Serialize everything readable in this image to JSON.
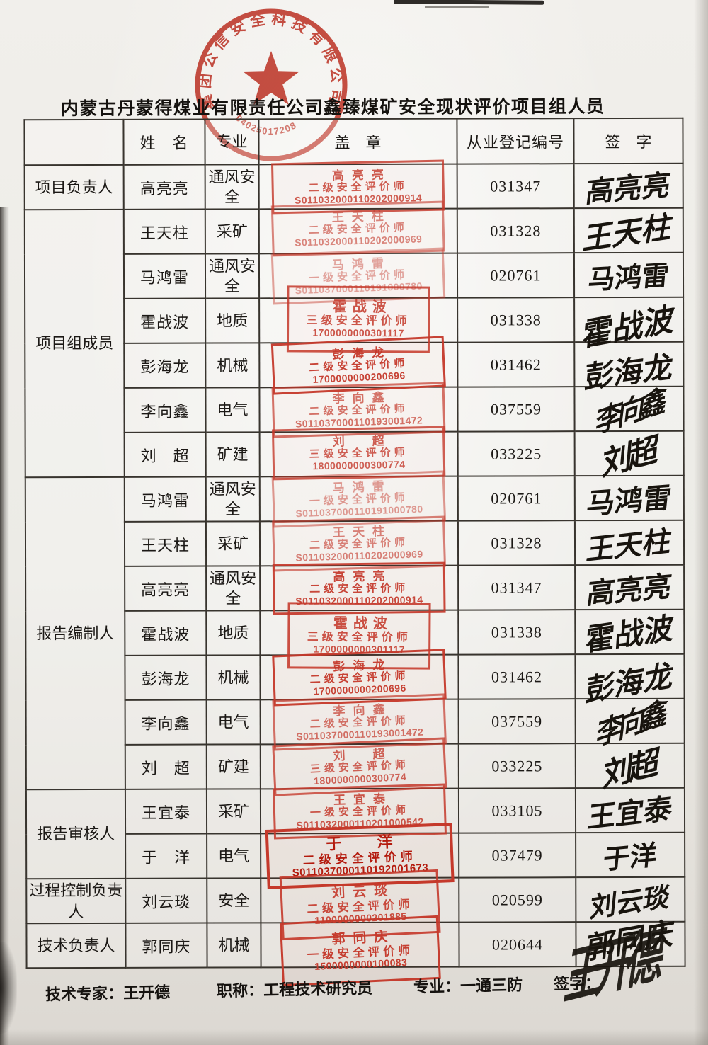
{
  "page": {
    "title": "内蒙古丹蒙得煤业有限责任公司鑫臻煤矿安全现状评价项目组人员"
  },
  "seal": {
    "ring_text": "集团公信安全科技有限公司",
    "code": "04025017208",
    "color": "#c5392b"
  },
  "table": {
    "headers": {
      "role": "",
      "name": "姓　名",
      "specialty": "专业",
      "stamp": "盖　章",
      "reg_no": "从业登记编号",
      "signature": "签　字"
    }
  },
  "rows": [
    {
      "role": "项目负责人",
      "role_span": 1,
      "name": "高亮亮",
      "specialty": "通风安全",
      "stamp": {
        "name": "高亮亮",
        "grade": "二级安全评价师",
        "no": "S011032000110202000914"
      },
      "reg_no": "031347",
      "signature": "高亮亮"
    },
    {
      "role": "项目组成员",
      "role_span": 6,
      "name": "王天柱",
      "specialty": "采矿",
      "stamp": {
        "name": "王天柱",
        "grade": "二级安全评价师",
        "no": "S011032000110202000969"
      },
      "reg_no": "031328",
      "signature": "王天柱"
    },
    {
      "name": "马鸿雷",
      "specialty": "通风安全",
      "stamp": {
        "name": "马鸿雷",
        "grade": "一级安全评价师",
        "no": "S011037000110191000780"
      },
      "reg_no": "020761",
      "signature": "马鸿雷"
    },
    {
      "name": "霍战波",
      "specialty": "地质",
      "stamp": {
        "name": "霍战波",
        "grade": "三级安全评价师",
        "no": "1700000000301117"
      },
      "reg_no": "031338",
      "signature": "霍战波"
    },
    {
      "name": "彭海龙",
      "specialty": "机械",
      "stamp": {
        "name": "彭海龙",
        "grade": "二级安全评价师",
        "no": "1700000000200696"
      },
      "reg_no": "031462",
      "signature": "彭海龙"
    },
    {
      "name": "李向鑫",
      "specialty": "电气",
      "stamp": {
        "name": "李向鑫",
        "grade": "二级安全评价师",
        "no": "S011037000110193001472"
      },
      "reg_no": "037559",
      "signature": "李向鑫"
    },
    {
      "name": "刘　超",
      "specialty": "矿建",
      "stamp": {
        "name": "刘　超",
        "grade": "三级安全评价师",
        "no": "1800000000300774"
      },
      "reg_no": "033225",
      "signature": "刘超"
    },
    {
      "role": "报告编制人",
      "role_span": 7,
      "name": "马鸿雷",
      "specialty": "通风安全",
      "stamp": {
        "name": "马鸿雷",
        "grade": "一级安全评价师",
        "no": "S011037000110191000780"
      },
      "reg_no": "020761",
      "signature": "马鸿雷"
    },
    {
      "name": "王天柱",
      "specialty": "采矿",
      "stamp": {
        "name": "王天柱",
        "grade": "二级安全评价师",
        "no": "S011032000110202000969"
      },
      "reg_no": "031328",
      "signature": "王天柱"
    },
    {
      "name": "高亮亮",
      "specialty": "通风安全",
      "stamp": {
        "name": "高亮亮",
        "grade": "二级安全评价师",
        "no": "S011032000110202000914"
      },
      "reg_no": "031347",
      "signature": "高亮亮"
    },
    {
      "name": "霍战波",
      "specialty": "地质",
      "stamp": {
        "name": "霍战波",
        "grade": "三级安全评价师",
        "no": "1700000000301117"
      },
      "reg_no": "031338",
      "signature": "霍战波"
    },
    {
      "name": "彭海龙",
      "specialty": "机械",
      "stamp": {
        "name": "彭海龙",
        "grade": "二级安全评价师",
        "no": "1700000000200696"
      },
      "reg_no": "031462",
      "signature": "彭海龙"
    },
    {
      "name": "李向鑫",
      "specialty": "电气",
      "stamp": {
        "name": "李向鑫",
        "grade": "二级安全评价师",
        "no": "S011037000110193001472"
      },
      "reg_no": "037559",
      "signature": "李向鑫"
    },
    {
      "name": "刘　超",
      "specialty": "矿建",
      "stamp": {
        "name": "刘　超",
        "grade": "三级安全评价师",
        "no": "1800000000300774"
      },
      "reg_no": "033225",
      "signature": "刘超"
    },
    {
      "role": "报告审核人",
      "role_span": 2,
      "name": "王宜泰",
      "specialty": "采矿",
      "stamp": {
        "name": "王宜泰",
        "grade": "一级安全评价师",
        "no": "S011032000110201000542"
      },
      "reg_no": "033105",
      "signature": "王宜泰"
    },
    {
      "name": "于　洋",
      "specialty": "电气",
      "stamp": {
        "name": "于 洋",
        "grade": "二级安全评价师",
        "no": "S011037000110192001673"
      },
      "reg_no": "037479",
      "signature": "于洋"
    },
    {
      "role": "过程控制负责人",
      "role_span": 1,
      "name": "刘云琰",
      "specialty": "安全",
      "stamp": {
        "name": "刘云琰",
        "grade": "二级安全评价师",
        "no": "1100000000201885"
      },
      "reg_no": "020599",
      "signature": "刘云琰"
    },
    {
      "role": "技术负责人",
      "role_span": 1,
      "name": "郭同庆",
      "specialty": "机械",
      "stamp": {
        "name": "郭同庆",
        "grade": "一级安全评价师",
        "no": "1500000000100083"
      },
      "reg_no": "020644",
      "signature": "郭同庆"
    }
  ],
  "footer": {
    "expert_label": "技术专家：",
    "expert_name": "王开德",
    "job_title_label": "职称：",
    "job_title": "工程技术研究员",
    "specialty_label": "专业：",
    "specialty": "一通三防",
    "sign_label": "签字：",
    "signature": "王开德"
  }
}
